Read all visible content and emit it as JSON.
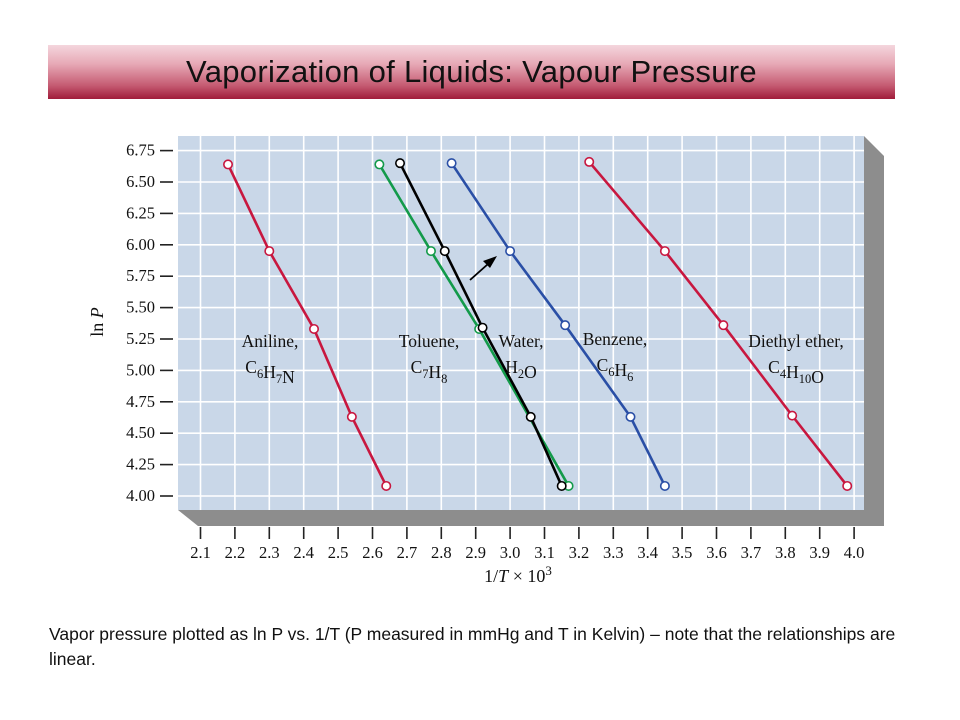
{
  "slide": {
    "title": "Vaporization of Liquids: Vapour Pressure",
    "caption": "Vapor pressure plotted as ln P vs. 1/T (P measured in mmHg and T in Kelvin) – note that the relationships are linear."
  },
  "colors": {
    "panel": "#c9d7e8",
    "grid": "#ffffff",
    "aniline": "#c8173f",
    "toluene": "#139a4a",
    "benzene_toluene_water_black": "#000000",
    "water": "#2a4fa6",
    "diethyl_ether": "#c8173f",
    "title_bar": "#a01c3a"
  },
  "chart_data": {
    "type": "line",
    "xlabel": "1/T × 10^3",
    "ylabel": "ln P",
    "xlim": [
      2.1,
      4.0
    ],
    "ylim": [
      4.0,
      6.75
    ],
    "x_ticks": [
      "2.1",
      "2.2",
      "2.3",
      "2.4",
      "2.5",
      "2.6",
      "2.7",
      "2.8",
      "2.9",
      "3.0",
      "3.1",
      "3.2",
      "3.3",
      "3.4",
      "3.5",
      "3.6",
      "3.7",
      "3.8",
      "3.9",
      "4.0"
    ],
    "y_ticks": [
      "4.00",
      "4.25",
      "4.50",
      "4.75",
      "5.00",
      "5.25",
      "5.50",
      "5.75",
      "6.00",
      "6.25",
      "6.50",
      "6.75"
    ],
    "grid": true,
    "series": [
      {
        "name": "Aniline",
        "formula": [
          "C",
          "6",
          "H",
          "7",
          "N"
        ],
        "color": "#c8173f",
        "x": [
          2.18,
          2.3,
          2.43,
          2.54,
          2.64
        ],
        "y": [
          6.64,
          5.95,
          5.33,
          4.63,
          4.08
        ],
        "label_lines": [
          "Aniline,",
          "C6H7N"
        ]
      },
      {
        "name": "Toluene",
        "formula": [
          "C",
          "7",
          "H",
          "8"
        ],
        "color": "#139a4a",
        "x": [
          2.62,
          2.77,
          2.91,
          3.17
        ],
        "y": [
          6.64,
          5.95,
          5.33,
          4.08
        ],
        "label_lines": [
          "Toluene,",
          "C7H8"
        ]
      },
      {
        "name": "Water",
        "formula": [
          "H",
          "2",
          "O"
        ],
        "color": "#000000",
        "x": [
          2.68,
          2.81,
          2.92,
          3.06,
          3.15
        ],
        "y": [
          6.65,
          5.95,
          5.34,
          4.63,
          4.08
        ],
        "label_lines": [
          "Water,",
          "H2O"
        ]
      },
      {
        "name": "Benzene",
        "formula": [
          "C",
          "6",
          "H",
          "6"
        ],
        "color": "#2a4fa6",
        "x": [
          2.83,
          3.0,
          3.16,
          3.35,
          3.45
        ],
        "y": [
          6.65,
          5.95,
          5.36,
          4.63,
          4.08
        ],
        "label_lines": [
          "Benzene,",
          "C6H6"
        ]
      },
      {
        "name": "Diethyl ether",
        "formula": [
          "C",
          "4",
          "H",
          "10",
          "O"
        ],
        "color": "#c8173f",
        "x": [
          3.23,
          3.45,
          3.62,
          3.82,
          3.98
        ],
        "y": [
          6.66,
          5.95,
          5.36,
          4.64,
          4.08
        ],
        "label_lines": [
          "Diethyl ether,",
          "C4H10O"
        ]
      }
    ]
  }
}
